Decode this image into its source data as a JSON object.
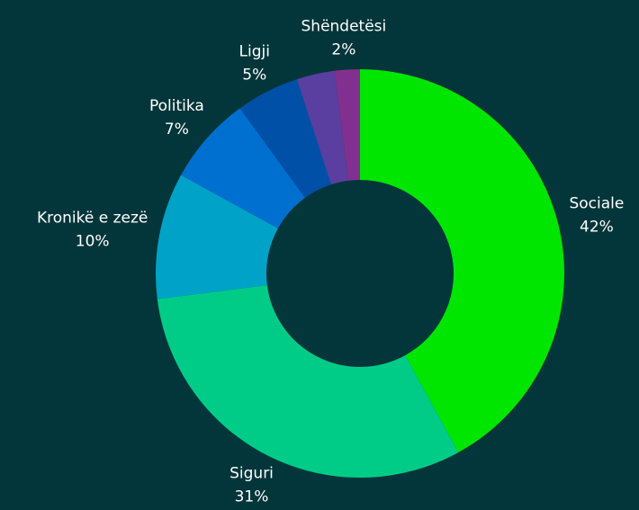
{
  "chart_data": {
    "type": "donut",
    "categories": [
      "Sociale",
      "Siguri",
      "Kronikë e zezë",
      "Politika",
      "Ligji",
      null,
      "Shëndetësi"
    ],
    "values": [
      42,
      31,
      10,
      7,
      5,
      3,
      2
    ],
    "value_labels": [
      "42%",
      "31%",
      "10%",
      "7%",
      "5%",
      null,
      "2%"
    ],
    "colors": [
      "#00e600",
      "#00cc88",
      "#00a2c8",
      "#0070d0",
      "#0050a8",
      "#5a3fa0",
      "#82308f"
    ]
  }
}
